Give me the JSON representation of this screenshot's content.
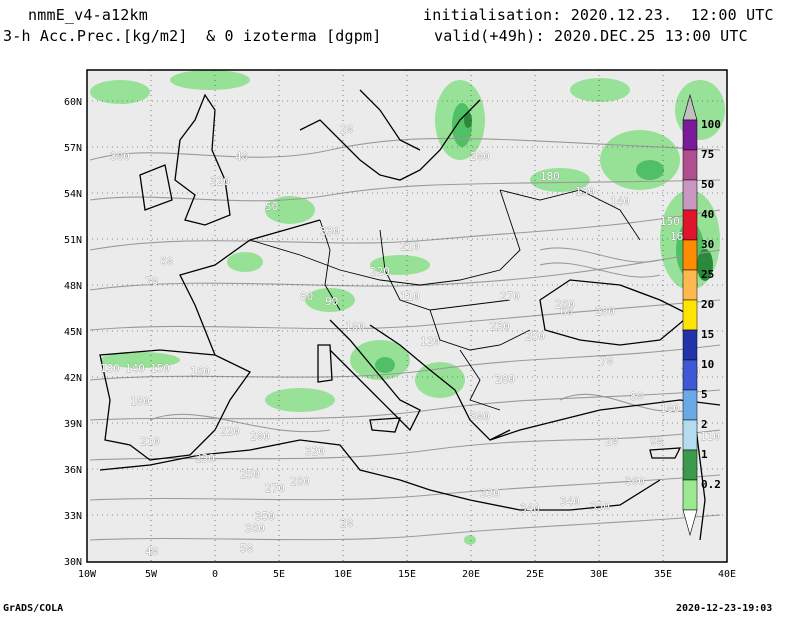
{
  "header": {
    "model": "nmmE_v4-a12km",
    "variables": "3-h Acc.Prec.[kg/m2]  & 0 izoterma [dgpm]",
    "init": "initialisation: 2020.12.23.  12:00 UTC",
    "valid": "valid(+49h): 2020.DEC.25 13:00 UTC"
  },
  "axes": {
    "lat_labels": [
      "60N",
      "57N",
      "54N",
      "51N",
      "48N",
      "45N",
      "42N",
      "39N",
      "36N",
      "33N",
      "30N"
    ],
    "lon_labels": [
      "10W",
      "5W",
      "0",
      "5E",
      "10E",
      "15E",
      "20E",
      "25E",
      "30E",
      "35E",
      "40E"
    ]
  },
  "colorbar": {
    "labels": [
      "100",
      "75",
      "50",
      "40",
      "30",
      "25",
      "20",
      "15",
      "10",
      "5",
      "2",
      "1",
      "0.2"
    ],
    "colors": [
      "#7a1c9a",
      "#b04f8f",
      "#c896c0",
      "#e0142a",
      "#ff8c00",
      "#ffb84d",
      "#ffe400",
      "#2233aa",
      "#3f59d6",
      "#6aa8e8",
      "#b4dcf0",
      "#3c9a4c",
      "#9ae890"
    ]
  },
  "contour_labels": [
    "20",
    "40",
    "50",
    "60",
    "70",
    "80",
    "90",
    "100",
    "110",
    "120",
    "130",
    "140",
    "150",
    "160",
    "180",
    "200",
    "210",
    "220",
    "230",
    "250",
    "260",
    "270",
    "280",
    "300",
    "320",
    "330",
    "340",
    "350",
    "360"
  ],
  "footer": {
    "left": "GrADS/COLA",
    "right": "2020-12-23-19:03"
  }
}
